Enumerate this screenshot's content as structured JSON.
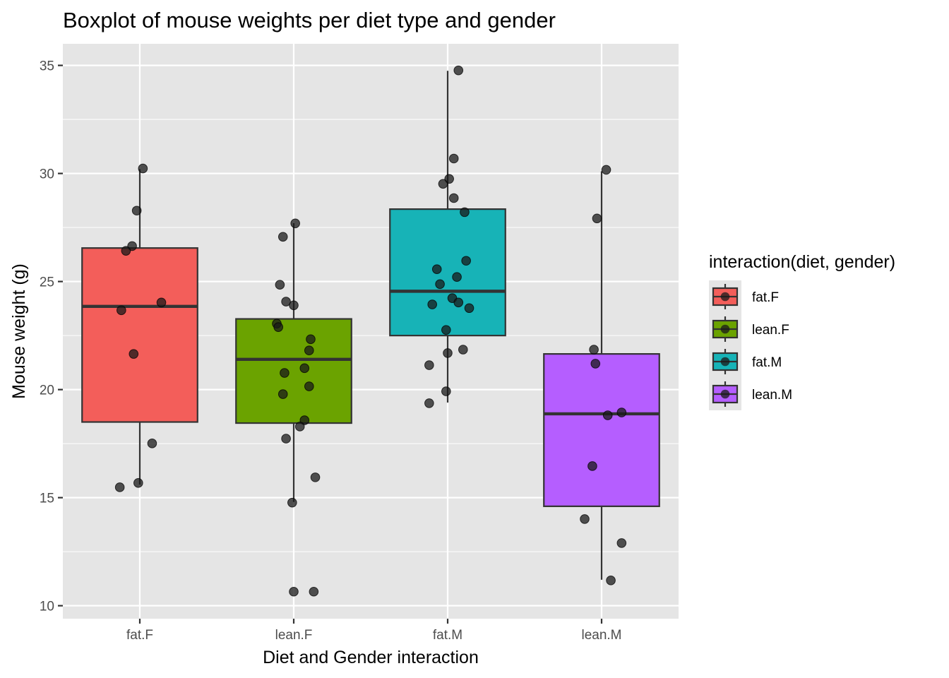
{
  "chart_data": {
    "type": "box",
    "title": "Boxplot of mouse weights per diet type and gender",
    "xlabel": "Diet and Gender interaction",
    "ylabel": "Mouse weight (g)",
    "ylim": [
      9.4,
      36.0
    ],
    "yticks": [
      10,
      15,
      20,
      25,
      30,
      35
    ],
    "ytick_labels": [
      "10",
      "15",
      "20",
      "25",
      "30",
      "35"
    ],
    "categories": [
      "fat.F",
      "lean.F",
      "fat.M",
      "lean.M"
    ],
    "grid": true,
    "legend": {
      "title": "interaction(diet, gender)",
      "position": "right",
      "entries": [
        "fat.F",
        "lean.F",
        "fat.M",
        "lean.M"
      ]
    },
    "colors": {
      "fat.F": "#F35E5A",
      "lean.F": "#6BA300",
      "fat.M": "#17B3B7",
      "lean.M": "#B55EFF",
      "panel_background": "#E5E5E5",
      "grid": "#FFFFFF",
      "points": "#1A1A1A"
    },
    "boxes": [
      {
        "category": "fat.F",
        "whisker_low": 15.6,
        "q1": 18.5,
        "median": 23.85,
        "q3": 26.55,
        "whisker_high": 30.2
      },
      {
        "category": "lean.F",
        "whisker_low": 14.8,
        "q1": 18.45,
        "median": 21.4,
        "q3": 23.27,
        "whisker_high": 27.7
      },
      {
        "category": "fat.M",
        "whisker_low": 19.4,
        "q1": 22.5,
        "median": 24.55,
        "q3": 28.35,
        "whisker_high": 34.75
      },
      {
        "category": "lean.M",
        "whisker_low": 11.2,
        "q1": 14.6,
        "median": 18.88,
        "q3": 21.65,
        "whisker_high": 30.1
      }
    ],
    "points": [
      {
        "category": "fat.F",
        "jitter": 0.02,
        "y": 30.23
      },
      {
        "category": "fat.F",
        "jitter": -0.02,
        "y": 28.28
      },
      {
        "category": "fat.F",
        "jitter": -0.05,
        "y": 26.64
      },
      {
        "category": "fat.F",
        "jitter": -0.09,
        "y": 26.42
      },
      {
        "category": "fat.F",
        "jitter": 0.14,
        "y": 24.03
      },
      {
        "category": "fat.F",
        "jitter": -0.12,
        "y": 23.67
      },
      {
        "category": "fat.F",
        "jitter": -0.04,
        "y": 21.65
      },
      {
        "category": "fat.F",
        "jitter": 0.08,
        "y": 17.51
      },
      {
        "category": "fat.F",
        "jitter": -0.01,
        "y": 15.68
      },
      {
        "category": "fat.F",
        "jitter": -0.13,
        "y": 15.48
      },
      {
        "category": "lean.F",
        "jitter": 0.01,
        "y": 27.69
      },
      {
        "category": "lean.F",
        "jitter": -0.07,
        "y": 27.07
      },
      {
        "category": "lean.F",
        "jitter": -0.09,
        "y": 24.85
      },
      {
        "category": "lean.F",
        "jitter": -0.05,
        "y": 24.07
      },
      {
        "category": "lean.F",
        "jitter": 0.0,
        "y": 23.9
      },
      {
        "category": "lean.F",
        "jitter": -0.11,
        "y": 23.05
      },
      {
        "category": "lean.F",
        "jitter": -0.1,
        "y": 22.89
      },
      {
        "category": "lean.F",
        "jitter": 0.11,
        "y": 22.33
      },
      {
        "category": "lean.F",
        "jitter": 0.1,
        "y": 21.81
      },
      {
        "category": "lean.F",
        "jitter": 0.07,
        "y": 20.99
      },
      {
        "category": "lean.F",
        "jitter": -0.06,
        "y": 20.77
      },
      {
        "category": "lean.F",
        "jitter": 0.1,
        "y": 20.15
      },
      {
        "category": "lean.F",
        "jitter": -0.07,
        "y": 19.79
      },
      {
        "category": "lean.F",
        "jitter": 0.07,
        "y": 18.58
      },
      {
        "category": "lean.F",
        "jitter": 0.04,
        "y": 18.29
      },
      {
        "category": "lean.F",
        "jitter": -0.05,
        "y": 17.73
      },
      {
        "category": "lean.F",
        "jitter": 0.14,
        "y": 15.94
      },
      {
        "category": "lean.F",
        "jitter": -0.01,
        "y": 14.77
      },
      {
        "category": "lean.F",
        "jitter": 0.0,
        "y": 10.65
      },
      {
        "category": "lean.F",
        "jitter": 0.13,
        "y": 10.65
      },
      {
        "category": "fat.M",
        "jitter": 0.07,
        "y": 34.77
      },
      {
        "category": "fat.M",
        "jitter": 0.04,
        "y": 30.69
      },
      {
        "category": "fat.M",
        "jitter": 0.01,
        "y": 29.75
      },
      {
        "category": "fat.M",
        "jitter": -0.03,
        "y": 29.52
      },
      {
        "category": "fat.M",
        "jitter": 0.04,
        "y": 28.86
      },
      {
        "category": "fat.M",
        "jitter": 0.11,
        "y": 28.21
      },
      {
        "category": "fat.M",
        "jitter": 0.12,
        "y": 25.96
      },
      {
        "category": "fat.M",
        "jitter": -0.07,
        "y": 25.57
      },
      {
        "category": "fat.M",
        "jitter": 0.06,
        "y": 25.21
      },
      {
        "category": "fat.M",
        "jitter": -0.05,
        "y": 24.88
      },
      {
        "category": "fat.M",
        "jitter": 0.03,
        "y": 24.23
      },
      {
        "category": "fat.M",
        "jitter": 0.07,
        "y": 24.03
      },
      {
        "category": "fat.M",
        "jitter": 0.14,
        "y": 23.77
      },
      {
        "category": "fat.M",
        "jitter": -0.1,
        "y": 23.94
      },
      {
        "category": "fat.M",
        "jitter": -0.01,
        "y": 22.76
      },
      {
        "category": "fat.M",
        "jitter": 0.1,
        "y": 21.85
      },
      {
        "category": "fat.M",
        "jitter": 0.0,
        "y": 21.69
      },
      {
        "category": "fat.M",
        "jitter": -0.12,
        "y": 21.13
      },
      {
        "category": "fat.M",
        "jitter": -0.01,
        "y": 19.92
      },
      {
        "category": "fat.M",
        "jitter": -0.12,
        "y": 19.37
      },
      {
        "category": "lean.M",
        "jitter": 0.03,
        "y": 30.17
      },
      {
        "category": "lean.M",
        "jitter": -0.03,
        "y": 27.92
      },
      {
        "category": "lean.M",
        "jitter": -0.05,
        "y": 21.85
      },
      {
        "category": "lean.M",
        "jitter": -0.04,
        "y": 21.2
      },
      {
        "category": "lean.M",
        "jitter": 0.13,
        "y": 18.94
      },
      {
        "category": "lean.M",
        "jitter": 0.04,
        "y": 18.81
      },
      {
        "category": "lean.M",
        "jitter": -0.06,
        "y": 16.46
      },
      {
        "category": "lean.M",
        "jitter": -0.11,
        "y": 14.01
      },
      {
        "category": "lean.M",
        "jitter": 0.13,
        "y": 12.9
      },
      {
        "category": "lean.M",
        "jitter": 0.06,
        "y": 11.17
      }
    ]
  }
}
